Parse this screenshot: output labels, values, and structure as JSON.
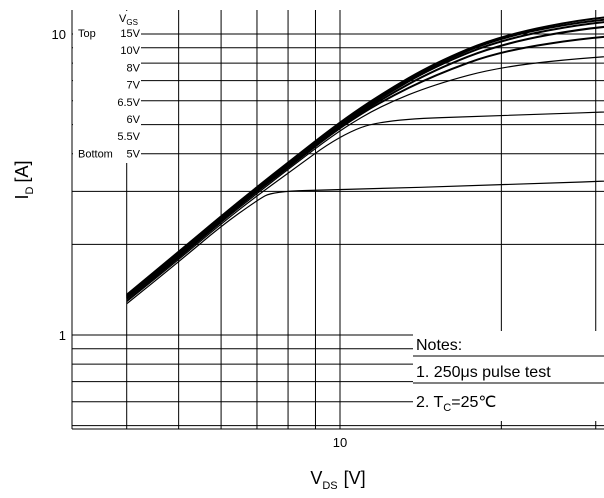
{
  "chart_data": {
    "type": "line",
    "xlabel": {
      "main": "V",
      "sub": "DS",
      "unit": "[V]"
    },
    "ylabel": {
      "main": "I",
      "sub": "D",
      "unit": "[A]"
    },
    "x_scale": "log",
    "y_scale": "log",
    "xlim": [
      4,
      40
    ],
    "ylim": [
      0.4,
      11
    ],
    "x_ticks": [
      {
        "value": 10,
        "label": "10"
      }
    ],
    "y_ticks": [
      {
        "value": 1,
        "label": "1"
      },
      {
        "value": 10,
        "label": "10"
      }
    ],
    "grid": true,
    "legend": {
      "header_main": "V",
      "header_sub": "GS",
      "placement": "top-left",
      "entries": [
        {
          "tag": "Top",
          "label": "15V"
        },
        {
          "tag": "",
          "label": "10V"
        },
        {
          "tag": "",
          "label": "8V"
        },
        {
          "tag": "",
          "label": "7V"
        },
        {
          "tag": "",
          "label": "6.5V"
        },
        {
          "tag": "",
          "label": "6V"
        },
        {
          "tag": "",
          "label": "5.5V"
        },
        {
          "tag": "Bottom",
          "label": "5V"
        }
      ]
    },
    "series": [
      {
        "values": [
          [
            4,
            1.27
          ],
          [
            5,
            1.75
          ],
          [
            6,
            2.3
          ],
          [
            7,
            2.8
          ],
          [
            7.5,
            3.0
          ],
          [
            10,
            3.04
          ],
          [
            20,
            3.15
          ],
          [
            40,
            3.3
          ]
        ]
      },
      {
        "values": [
          [
            4,
            1.29
          ],
          [
            5,
            1.78
          ],
          [
            6,
            2.34
          ],
          [
            7,
            2.9
          ],
          [
            8,
            3.45
          ],
          [
            10,
            4.6
          ],
          [
            12,
            5.2
          ],
          [
            20,
            5.35
          ],
          [
            40,
            5.6
          ]
        ]
      },
      {
        "values": [
          [
            4,
            1.3
          ],
          [
            5,
            1.8
          ],
          [
            6,
            2.37
          ],
          [
            7,
            2.95
          ],
          [
            8,
            3.55
          ],
          [
            10,
            4.8
          ],
          [
            12,
            5.8
          ],
          [
            15,
            6.8
          ],
          [
            20,
            7.8
          ],
          [
            30,
            8.4
          ],
          [
            40,
            8.6
          ]
        ]
      },
      {
        "values": [
          [
            4,
            1.32
          ],
          [
            5,
            1.82
          ],
          [
            6,
            2.4
          ],
          [
            7,
            3.0
          ],
          [
            8,
            3.6
          ],
          [
            10,
            4.9
          ],
          [
            12,
            6.0
          ],
          [
            15,
            7.3
          ],
          [
            20,
            8.8
          ],
          [
            30,
            9.8
          ],
          [
            40,
            10.0
          ]
        ]
      },
      {
        "values": [
          [
            4,
            1.33
          ],
          [
            5,
            1.84
          ],
          [
            6,
            2.42
          ],
          [
            7,
            3.02
          ],
          [
            8,
            3.63
          ],
          [
            10,
            4.95
          ],
          [
            12,
            6.1
          ],
          [
            15,
            7.6
          ],
          [
            20,
            9.3
          ],
          [
            30,
            10.6
          ],
          [
            40,
            10.8
          ]
        ]
      },
      {
        "values": [
          [
            4,
            1.34
          ],
          [
            5,
            1.85
          ],
          [
            6,
            2.44
          ],
          [
            7,
            3.04
          ],
          [
            8,
            3.66
          ],
          [
            10,
            5.0
          ],
          [
            12,
            6.2
          ],
          [
            15,
            7.8
          ],
          [
            20,
            9.6
          ],
          [
            30,
            11.0
          ],
          [
            40,
            11.2
          ]
        ]
      },
      {
        "values": [
          [
            4,
            1.35
          ],
          [
            5,
            1.87
          ],
          [
            6,
            2.46
          ],
          [
            7,
            3.07
          ],
          [
            8,
            3.7
          ],
          [
            10,
            5.05
          ],
          [
            12,
            6.3
          ],
          [
            15,
            7.9
          ],
          [
            20,
            9.8
          ],
          [
            30,
            11.2
          ],
          [
            40,
            11.4
          ]
        ]
      },
      {
        "values": [
          [
            4,
            1.36
          ],
          [
            5,
            1.89
          ],
          [
            6,
            2.48
          ],
          [
            7,
            3.1
          ],
          [
            8,
            3.74
          ],
          [
            10,
            5.1
          ],
          [
            12,
            6.35
          ],
          [
            15,
            8.0
          ],
          [
            20,
            9.9
          ],
          [
            30,
            11.4
          ],
          [
            40,
            11.6
          ]
        ]
      }
    ],
    "notes": [
      {
        "text": "Notes:"
      },
      {
        "text": "1. 250μs pulse test"
      },
      {
        "main": "2. T",
        "sub": "C",
        "rest": "=25℃"
      }
    ]
  }
}
